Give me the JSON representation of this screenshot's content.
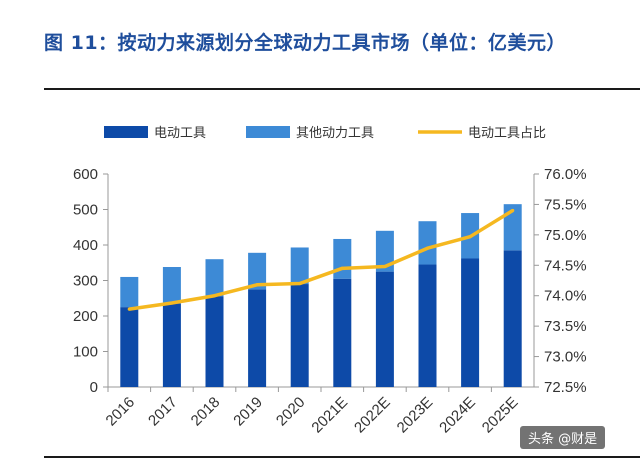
{
  "figure": {
    "title": "图 11：按动力来源划分全球动力工具市场（单位：亿美元）"
  },
  "watermark": "头条 @财是",
  "chart_data": {
    "type": "bar",
    "stacked": true,
    "categories": [
      "2016",
      "2017",
      "2018",
      "2019",
      "2020",
      "2021E",
      "2022E",
      "2023E",
      "2024E",
      "2025E"
    ],
    "series": [
      {
        "name": "电动工具",
        "type": "bar",
        "axis": "left",
        "color": "#0d4aa8",
        "values": [
          225,
          235,
          255,
          275,
          290,
          305,
          325,
          345,
          362,
          385
        ]
      },
      {
        "name": "其他动力工具",
        "type": "bar",
        "axis": "left",
        "color": "#3d8ad6",
        "values": [
          85,
          103,
          105,
          103,
          103,
          112,
          115,
          122,
          128,
          130
        ]
      },
      {
        "name": "电动工具占比",
        "type": "line",
        "axis": "right",
        "color": "#f5b820",
        "values": [
          73.78,
          73.88,
          74.0,
          74.18,
          74.2,
          74.45,
          74.48,
          74.78,
          74.97,
          75.4
        ]
      }
    ],
    "y_left": {
      "min": 0,
      "max": 600,
      "ticks": [
        0,
        100,
        200,
        300,
        400,
        500,
        600
      ]
    },
    "y_right": {
      "min": 72.5,
      "max": 76.0,
      "ticks": [
        "72.5%",
        "73.0%",
        "73.5%",
        "74.0%",
        "74.5%",
        "75.0%",
        "75.5%",
        "76.0%"
      ]
    },
    "legend_position": "top",
    "grid": false
  }
}
